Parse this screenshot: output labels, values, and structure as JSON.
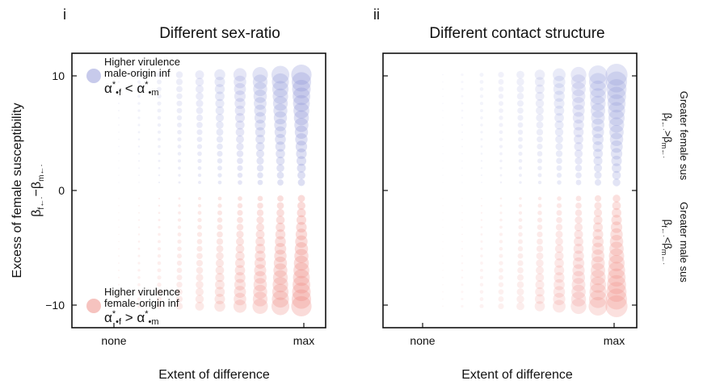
{
  "chart_data": [
    {
      "panel_letter": "i",
      "title": "Different sex-ratio",
      "type": "scatter",
      "xlabel": "Extent of difference",
      "xticks": [
        "none",
        "max"
      ],
      "ylabel": "Excess of female susceptibility",
      "ylabel_math": "β",
      "ylabel_sub1": "f←·",
      "ylabel_mid": "−β",
      "ylabel_sub2": "m←·",
      "yticks": [
        10,
        0,
        -10
      ],
      "ylim": [
        -11.5,
        11.5
      ],
      "x_columns": 11,
      "size_encodes": "extent of difference",
      "colors": {
        "blue": "#8f96d8",
        "red": "#ee8880"
      },
      "legend_top": {
        "line1": "Higher virulence",
        "line2": "male-origin inf",
        "alpha": "α",
        "sub": "•f",
        "rel": " < ",
        "sub2": "•m"
      },
      "legend_bottom": {
        "line1": "Higher virulence",
        "line2": "female-origin inf",
        "alpha": "α",
        "sub": "•f",
        "rel": " > ",
        "sub2": "•m"
      }
    },
    {
      "panel_letter": "ii",
      "title": "Different contact structure",
      "type": "scatter",
      "xlabel": "Extent of difference",
      "xticks": [
        "none",
        "max"
      ],
      "yticks": [
        10,
        0,
        -10
      ],
      "ylim": [
        -11.5,
        11.5
      ],
      "x_columns": 11,
      "size_encodes": "extent of difference",
      "colors": {
        "blue": "#8f96d8",
        "red": "#ee8880"
      },
      "right_label_top": "Greater female sus",
      "right_label_top_math": "β",
      "right_label_top_sub1": "f←·",
      "right_label_top_rel": ">β",
      "right_label_top_sub2": "m←·",
      "right_label_bottom": "Greater male sus",
      "right_label_bottom_math": "β",
      "right_label_bottom_sub1": "f←·",
      "right_label_bottom_rel": "<β",
      "right_label_bottom_sub2": "m←·"
    }
  ]
}
